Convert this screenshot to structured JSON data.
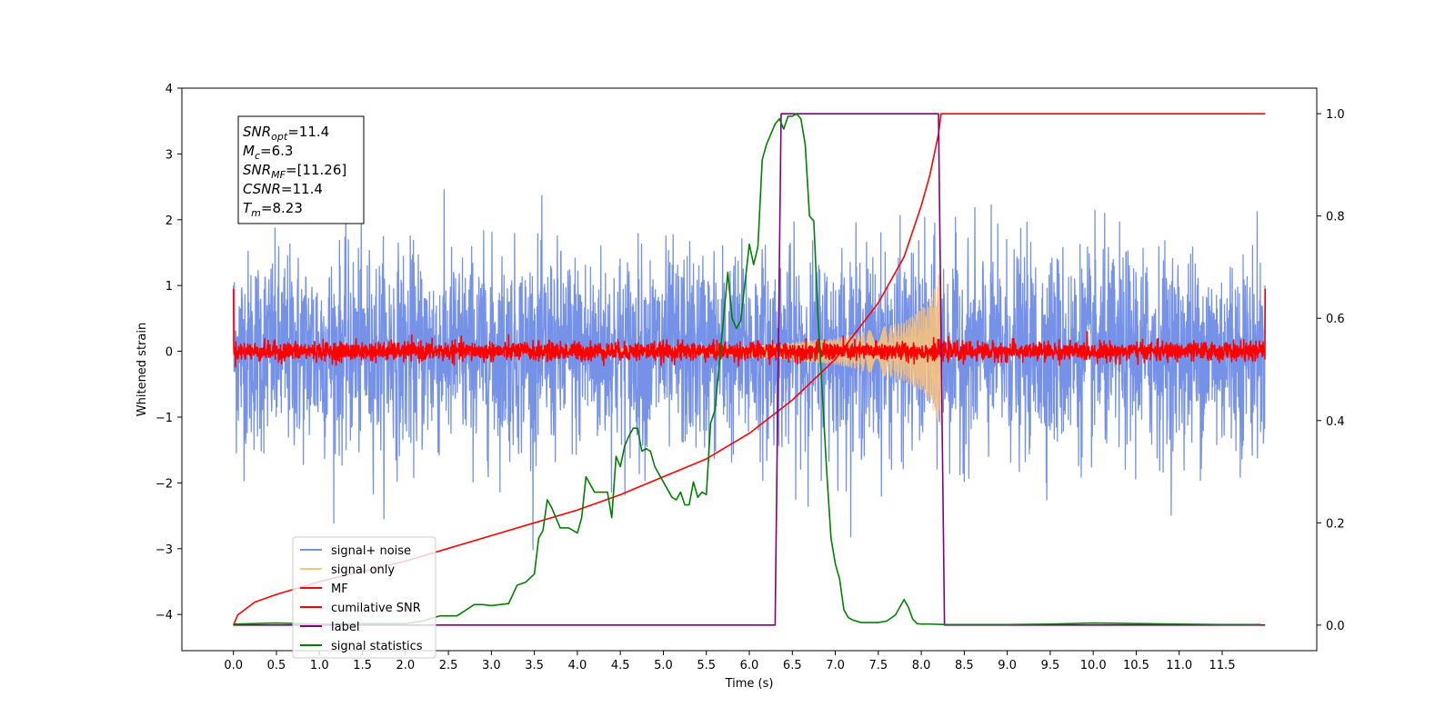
{
  "chart_data": {
    "type": "line",
    "title": "",
    "xlabel": "Time (s)",
    "ylabel_left": "Whitened strain",
    "ylabel_right": "",
    "xlim": [
      -0.6,
      12.6
    ],
    "ylim_left": [
      -4.55,
      4.0
    ],
    "ylim_right": [
      -0.05,
      1.05
    ],
    "xticks": [
      0.0,
      0.5,
      1.0,
      1.5,
      2.0,
      2.5,
      3.0,
      3.5,
      4.0,
      4.5,
      5.0,
      5.5,
      6.0,
      6.5,
      7.0,
      7.5,
      8.0,
      8.5,
      9.0,
      9.5,
      10.0,
      10.5,
      11.0,
      11.5
    ],
    "xtick_labels": [
      "0.0",
      "0.5",
      "1.0",
      "1.5",
      "2.0",
      "2.5",
      "3.0",
      "3.5",
      "4.0",
      "4.5",
      "5.0",
      "5.5",
      "6.0",
      "6.5",
      "7.0",
      "7.5",
      "8.0",
      "8.5",
      "9.0",
      "9.5",
      "10.0",
      "10.5",
      "11.0",
      "11.5"
    ],
    "yticks_left": [
      4,
      3,
      2,
      1,
      0,
      -1,
      -2,
      -3,
      -4
    ],
    "ytick_labels_left": [
      "4",
      "3",
      "2",
      "1",
      "0",
      "−1",
      "−2",
      "−3",
      "−4"
    ],
    "yticks_right": [
      1.0,
      0.8,
      0.6,
      0.4,
      0.2,
      0.0
    ],
    "ytick_labels_right": [
      "1.0",
      "0.8",
      "0.6",
      "0.4",
      "0.2",
      "0.0"
    ],
    "grid": false,
    "legend_position": "lower-left",
    "annotations": [
      {
        "base": "SNR",
        "sub": "opt",
        "rest": "=11.4"
      },
      {
        "base": "M",
        "sub": "c",
        "rest": "=6.3"
      },
      {
        "base": "SNR",
        "sub": "MF",
        "rest": "=[11.26]"
      },
      {
        "base": "CSNR",
        "sub": "",
        "rest": "=11.4"
      },
      {
        "base": "T",
        "sub": "m",
        "rest": "=8.23"
      }
    ],
    "series": [
      {
        "name": "signal+ noise",
        "axis": "left",
        "color": "#7592e8",
        "kind": "noise",
        "noise_std": 0.75,
        "x_range": [
          0.0,
          12.0
        ]
      },
      {
        "name": "signal only",
        "axis": "left",
        "color": "#ffc477",
        "kind": "chirp",
        "x_range": [
          0.0,
          8.23
        ],
        "envelope": [
          [
            0.0,
            0.01
          ],
          [
            4.0,
            0.03
          ],
          [
            6.0,
            0.08
          ],
          [
            7.0,
            0.2
          ],
          [
            7.8,
            0.45
          ],
          [
            8.1,
            0.75
          ],
          [
            8.23,
            1.3
          ]
        ]
      },
      {
        "name": "MF",
        "axis": "left",
        "color": "#ff0000",
        "kind": "noise",
        "noise_std": 0.07,
        "x_range": [
          0.0,
          12.0
        ]
      },
      {
        "name": "cumilative SNR",
        "axis": "right",
        "color": "#ff0000",
        "kind": "line",
        "x": [
          0.0,
          0.05,
          0.25,
          0.5,
          1.0,
          1.5,
          2.0,
          2.5,
          3.0,
          3.5,
          4.0,
          4.5,
          5.0,
          5.5,
          6.0,
          6.5,
          7.0,
          7.5,
          7.8,
          8.0,
          8.1,
          8.2,
          8.23,
          12.0
        ],
        "y": [
          0.0,
          0.02,
          0.045,
          0.06,
          0.085,
          0.105,
          0.125,
          0.15,
          0.175,
          0.2,
          0.225,
          0.255,
          0.29,
          0.325,
          0.375,
          0.44,
          0.52,
          0.63,
          0.72,
          0.82,
          0.88,
          0.96,
          1.0,
          1.0
        ]
      },
      {
        "name": "label",
        "axis": "right",
        "color": "#800080",
        "kind": "line",
        "x": [
          0.0,
          6.3,
          6.37,
          8.2,
          8.27,
          12.0
        ],
        "y": [
          0.0,
          0.0,
          1.0,
          1.0,
          0.0,
          0.0
        ]
      },
      {
        "name": "signal statistics",
        "axis": "right",
        "color": "#008000",
        "kind": "line",
        "x": [
          0.0,
          0.5,
          1.0,
          1.5,
          2.0,
          2.2,
          2.4,
          2.6,
          2.8,
          2.9,
          3.0,
          3.2,
          3.3,
          3.4,
          3.5,
          3.55,
          3.6,
          3.65,
          3.7,
          3.8,
          3.9,
          4.0,
          4.05,
          4.1,
          4.2,
          4.3,
          4.35,
          4.4,
          4.45,
          4.5,
          4.55,
          4.6,
          4.65,
          4.7,
          4.75,
          4.8,
          4.85,
          4.9,
          5.0,
          5.1,
          5.15,
          5.2,
          5.25,
          5.3,
          5.35,
          5.4,
          5.45,
          5.5,
          5.55,
          5.6,
          5.7,
          5.75,
          5.8,
          5.85,
          5.9,
          6.0,
          6.05,
          6.1,
          6.15,
          6.2,
          6.25,
          6.3,
          6.35,
          6.4,
          6.45,
          6.5,
          6.55,
          6.6,
          6.65,
          6.7,
          6.75,
          6.8,
          6.85,
          6.9,
          6.95,
          7.0,
          7.05,
          7.1,
          7.15,
          7.2,
          7.3,
          7.4,
          7.5,
          7.6,
          7.7,
          7.8,
          7.85,
          7.9,
          7.95,
          8.0,
          8.1,
          8.3,
          8.5,
          9.0,
          9.5,
          10.0,
          10.5,
          11.0,
          11.5,
          11.95
        ],
        "y": [
          0.002,
          0.004,
          0.002,
          0.003,
          0.003,
          0.008,
          0.018,
          0.018,
          0.04,
          0.04,
          0.038,
          0.042,
          0.078,
          0.084,
          0.1,
          0.17,
          0.185,
          0.245,
          0.23,
          0.19,
          0.19,
          0.18,
          0.21,
          0.29,
          0.26,
          0.26,
          0.26,
          0.21,
          0.33,
          0.31,
          0.35,
          0.37,
          0.385,
          0.385,
          0.34,
          0.345,
          0.34,
          0.31,
          0.28,
          0.25,
          0.245,
          0.26,
          0.235,
          0.235,
          0.28,
          0.25,
          0.26,
          0.255,
          0.395,
          0.42,
          0.6,
          0.69,
          0.6,
          0.58,
          0.595,
          0.745,
          0.705,
          0.74,
          0.91,
          0.94,
          0.96,
          0.98,
          0.99,
          0.97,
          0.995,
          0.995,
          1.0,
          0.99,
          0.94,
          0.8,
          0.79,
          0.6,
          0.45,
          0.3,
          0.17,
          0.12,
          0.09,
          0.03,
          0.015,
          0.01,
          0.005,
          0.005,
          0.005,
          0.008,
          0.02,
          0.05,
          0.035,
          0.012,
          0.003,
          0.002,
          0.002,
          0.001,
          0.001,
          0.001,
          0.002,
          0.004,
          0.003,
          0.002,
          0.001,
          0.001
        ]
      }
    ]
  }
}
